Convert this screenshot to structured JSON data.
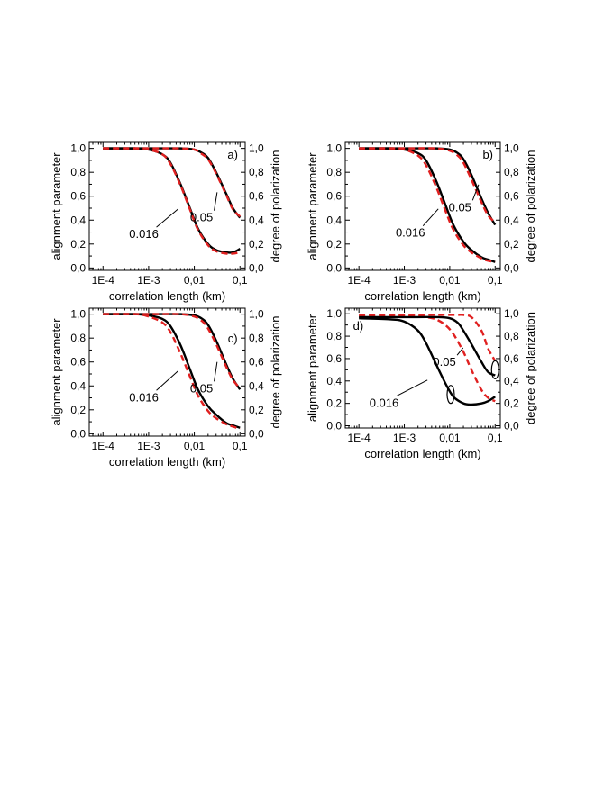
{
  "chart_data": [
    {
      "type": "line",
      "panel_label": "a)",
      "xlabel": "correlation length (km)",
      "ylabel": "alignment parameter",
      "y2label": "degree of polarization",
      "x_scale": "log",
      "xlim": [
        5e-05,
        0.13
      ],
      "ylim": [
        -0.02,
        1.05
      ],
      "xticks": [
        "1E-4",
        "1E-3",
        "0,01",
        "0,1"
      ],
      "yticks": [
        "0,0",
        "0,2",
        "0,4",
        "0,6",
        "0,8",
        "1,0"
      ],
      "legend": "none",
      "grid": false,
      "colors": {
        "alignment": "#000000",
        "polarization": "#e02020"
      },
      "annotations": [
        "0.016",
        "0.05"
      ],
      "series": [
        {
          "label": "0.016",
          "x": [
            0.0001,
            0.0005,
            0.001,
            0.002,
            0.003,
            0.005,
            0.008,
            0.012,
            0.02,
            0.03,
            0.05,
            0.07,
            0.1
          ],
          "values": [
            1.0,
            1.0,
            0.99,
            0.95,
            0.88,
            0.7,
            0.5,
            0.33,
            0.2,
            0.15,
            0.13,
            0.13,
            0.16
          ],
          "style": "solid"
        },
        {
          "label": "0.016",
          "x": [
            0.0001,
            0.0005,
            0.001,
            0.002,
            0.003,
            0.005,
            0.008,
            0.012,
            0.02,
            0.03,
            0.05,
            0.07,
            0.1
          ],
          "values": [
            1.0,
            1.0,
            0.99,
            0.95,
            0.87,
            0.69,
            0.49,
            0.32,
            0.19,
            0.14,
            0.12,
            0.12,
            0.13
          ],
          "style": "dashed"
        },
        {
          "label": "0.05",
          "x": [
            0.0001,
            0.001,
            0.005,
            0.01,
            0.015,
            0.02,
            0.03,
            0.05,
            0.07,
            0.1
          ],
          "values": [
            1.0,
            1.0,
            1.0,
            0.99,
            0.96,
            0.92,
            0.8,
            0.62,
            0.5,
            0.42
          ],
          "style": "solid"
        },
        {
          "label": "0.05",
          "x": [
            0.0001,
            0.001,
            0.005,
            0.01,
            0.015,
            0.02,
            0.03,
            0.05,
            0.07,
            0.1
          ],
          "values": [
            1.0,
            1.0,
            1.0,
            0.99,
            0.95,
            0.91,
            0.79,
            0.61,
            0.49,
            0.43
          ],
          "style": "dashed"
        }
      ]
    },
    {
      "type": "line",
      "panel_label": "b)",
      "xlabel": "correlation length (km)",
      "ylabel": "alignment parameter",
      "y2label": "degree of polarization",
      "x_scale": "log",
      "xlim": [
        5e-05,
        0.13
      ],
      "ylim": [
        -0.02,
        1.05
      ],
      "xticks": [
        "1E-4",
        "1E-3",
        "0,01",
        "0,1"
      ],
      "yticks": [
        "0,0",
        "0,2",
        "0,4",
        "0,6",
        "0,8",
        "1,0"
      ],
      "legend": "none",
      "grid": false,
      "colors": {
        "alignment": "#000000",
        "polarization": "#e02020"
      },
      "annotations": [
        "0.016",
        "0.05"
      ],
      "series": [
        {
          "label": "0.016",
          "x": [
            0.0001,
            0.0005,
            0.001,
            0.002,
            0.003,
            0.005,
            0.008,
            0.012,
            0.02,
            0.03,
            0.05,
            0.07,
            0.1
          ],
          "values": [
            1.0,
            1.0,
            0.99,
            0.96,
            0.9,
            0.73,
            0.53,
            0.36,
            0.22,
            0.15,
            0.09,
            0.07,
            0.05
          ],
          "style": "solid"
        },
        {
          "label": "0.016",
          "x": [
            0.0001,
            0.0005,
            0.001,
            0.002,
            0.003,
            0.005,
            0.008,
            0.012,
            0.02,
            0.03,
            0.05,
            0.07,
            0.1
          ],
          "values": [
            1.0,
            1.0,
            0.99,
            0.94,
            0.86,
            0.68,
            0.48,
            0.32,
            0.19,
            0.13,
            0.08,
            0.06,
            0.05
          ],
          "style": "dashed"
        },
        {
          "label": "0.05",
          "x": [
            0.0001,
            0.001,
            0.005,
            0.01,
            0.015,
            0.02,
            0.03,
            0.05,
            0.07,
            0.1
          ],
          "values": [
            1.0,
            1.0,
            1.0,
            0.99,
            0.96,
            0.91,
            0.78,
            0.58,
            0.46,
            0.36
          ],
          "style": "solid"
        },
        {
          "label": "0.05",
          "x": [
            0.0001,
            0.001,
            0.005,
            0.01,
            0.015,
            0.02,
            0.03,
            0.05,
            0.07,
            0.1
          ],
          "values": [
            1.0,
            1.0,
            1.0,
            0.98,
            0.94,
            0.88,
            0.74,
            0.55,
            0.44,
            0.38
          ],
          "style": "dashed"
        }
      ]
    },
    {
      "type": "line",
      "panel_label": "c)",
      "xlabel": "correlation length (km)",
      "ylabel": "alignment parameter",
      "y2label": "degree of polarization",
      "x_scale": "log",
      "xlim": [
        5e-05,
        0.13
      ],
      "ylim": [
        -0.02,
        1.05
      ],
      "xticks": [
        "1E-4",
        "1E-3",
        "0,01",
        "0,1"
      ],
      "yticks": [
        "0,0",
        "0,2",
        "0,4",
        "0,6",
        "0,8",
        "1,0"
      ],
      "legend": "none",
      "grid": false,
      "colors": {
        "alignment": "#000000",
        "polarization": "#e02020"
      },
      "annotations": [
        "0.016",
        "0.05"
      ],
      "series": [
        {
          "label": "0.016",
          "x": [
            0.0001,
            0.0005,
            0.001,
            0.002,
            0.003,
            0.005,
            0.008,
            0.012,
            0.02,
            0.03,
            0.05,
            0.07,
            0.1
          ],
          "values": [
            1.0,
            1.0,
            0.99,
            0.96,
            0.9,
            0.74,
            0.54,
            0.37,
            0.23,
            0.16,
            0.09,
            0.07,
            0.05
          ],
          "style": "solid"
        },
        {
          "label": "0.016",
          "x": [
            0.0001,
            0.0005,
            0.001,
            0.002,
            0.003,
            0.005,
            0.008,
            0.012,
            0.02,
            0.03,
            0.05,
            0.07,
            0.1
          ],
          "values": [
            1.0,
            1.0,
            0.98,
            0.93,
            0.85,
            0.67,
            0.48,
            0.32,
            0.19,
            0.13,
            0.08,
            0.06,
            0.04
          ],
          "style": "dashed"
        },
        {
          "label": "0.05",
          "x": [
            0.0001,
            0.001,
            0.005,
            0.01,
            0.015,
            0.02,
            0.03,
            0.05,
            0.07,
            0.1
          ],
          "values": [
            1.0,
            1.0,
            1.0,
            0.99,
            0.96,
            0.91,
            0.78,
            0.58,
            0.46,
            0.37
          ],
          "style": "solid"
        },
        {
          "label": "0.05",
          "x": [
            0.0001,
            0.001,
            0.005,
            0.01,
            0.015,
            0.02,
            0.03,
            0.05,
            0.07,
            0.1
          ],
          "values": [
            1.0,
            1.0,
            1.0,
            0.98,
            0.94,
            0.88,
            0.75,
            0.56,
            0.45,
            0.38
          ],
          "style": "dashed"
        }
      ]
    },
    {
      "type": "line",
      "panel_label": "d)",
      "xlabel": "correlation length (km)",
      "ylabel": "alignment parameter",
      "y2label": "degree of polarization",
      "x_scale": "log",
      "xlim": [
        5e-05,
        0.13
      ],
      "ylim": [
        -0.02,
        1.05
      ],
      "xticks": [
        "1E-4",
        "1E-3",
        "0,01",
        "0,1"
      ],
      "yticks": [
        "0,0",
        "0,2",
        "0,4",
        "0,6",
        "0,8",
        "1,0"
      ],
      "legend": "none",
      "grid": false,
      "colors": {
        "alignment": "#000000",
        "polarization": "#e02020"
      },
      "annotations": [
        "0.016",
        "0.05"
      ],
      "series": [
        {
          "label": "0.016",
          "x": [
            0.0001,
            0.0005,
            0.001,
            0.002,
            0.003,
            0.005,
            0.008,
            0.012,
            0.02,
            0.03,
            0.05,
            0.07,
            0.1
          ],
          "values": [
            0.96,
            0.95,
            0.93,
            0.85,
            0.74,
            0.55,
            0.38,
            0.26,
            0.2,
            0.19,
            0.2,
            0.22,
            0.26
          ],
          "style": "solid"
        },
        {
          "label": "0.016",
          "x": [
            0.0001,
            0.0005,
            0.001,
            0.002,
            0.003,
            0.005,
            0.008,
            0.012,
            0.02,
            0.03,
            0.05,
            0.07,
            0.1
          ],
          "values": [
            0.98,
            0.98,
            0.98,
            0.98,
            0.97,
            0.95,
            0.9,
            0.82,
            0.66,
            0.5,
            0.32,
            0.25,
            0.22
          ],
          "style": "dashed"
        },
        {
          "label": "0.05",
          "x": [
            0.0001,
            0.001,
            0.005,
            0.01,
            0.015,
            0.02,
            0.03,
            0.05,
            0.07,
            0.1
          ],
          "values": [
            0.97,
            0.97,
            0.97,
            0.96,
            0.92,
            0.85,
            0.73,
            0.57,
            0.48,
            0.45
          ],
          "style": "solid"
        },
        {
          "label": "0.05",
          "x": [
            0.0001,
            0.001,
            0.005,
            0.01,
            0.015,
            0.02,
            0.03,
            0.05,
            0.07,
            0.1
          ],
          "values": [
            0.99,
            0.99,
            0.99,
            0.99,
            0.99,
            0.99,
            0.97,
            0.85,
            0.69,
            0.58
          ],
          "style": "dashed"
        }
      ]
    }
  ]
}
